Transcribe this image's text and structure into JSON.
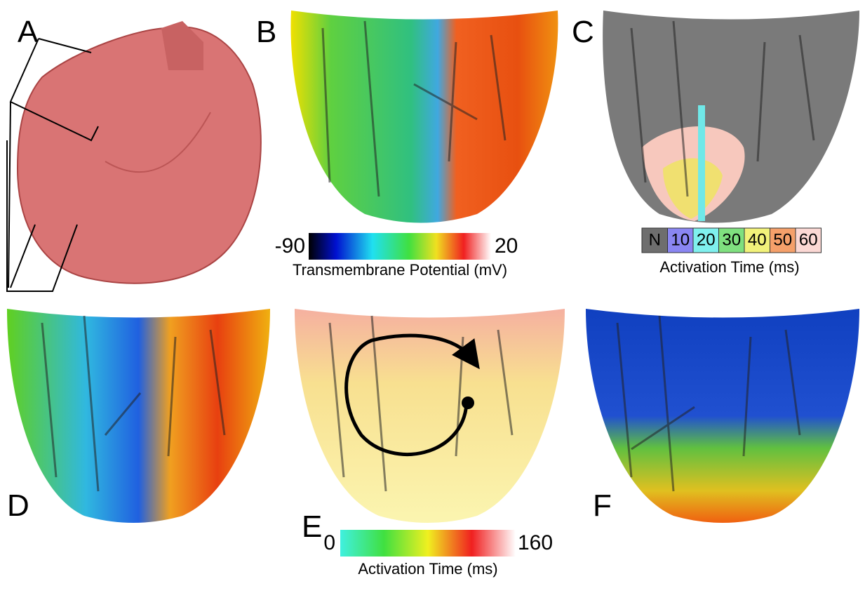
{
  "panels": [
    {
      "label": "A"
    },
    {
      "label": "B"
    },
    {
      "label": "C"
    },
    {
      "label": "D"
    },
    {
      "label": "E"
    },
    {
      "label": "F"
    }
  ],
  "potential_colorbar": {
    "min_label": "-90",
    "max_label": "20",
    "title": "Transmembrane Potential (mV)"
  },
  "activation_legend": {
    "items": [
      "N",
      "10",
      "20",
      "30",
      "40",
      "50",
      "60"
    ],
    "title": "Activation Time (ms)"
  },
  "activation_colorbar": {
    "min_label": "0",
    "max_label": "160",
    "title": "Activation Time (ms)"
  }
}
